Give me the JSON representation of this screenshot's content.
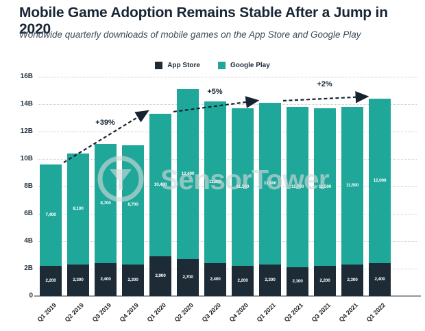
{
  "header": {
    "title": "Mobile Game Adoption Remains Stable After a Jump in 2020",
    "subtitle": "Worldwide quarterly downloads of mobile games on the App Store and Google Play"
  },
  "legend": [
    {
      "label": "App Store",
      "color": "#1d2b36"
    },
    {
      "label": "Google Play",
      "color": "#1fa79a"
    }
  ],
  "watermark": {
    "text": "SensorTower",
    "color": "#d5d9da"
  },
  "colors": {
    "app_store": "#1d2b36",
    "google_play": "#1fa79a",
    "annotation": "#152230",
    "gridline": "#c7cccd"
  },
  "chart_data": {
    "type": "bar",
    "stacked": true,
    "title": "Mobile Game Adoption Remains Stable After a Jump in 2020",
    "subtitle": "Worldwide quarterly downloads of mobile games on the App Store and Google Play",
    "unit": "millions of downloads per quarter",
    "categories": [
      "Q1 2019",
      "Q2 2019",
      "Q3 2019",
      "Q4 2019",
      "Q1 2020",
      "Q2 2020",
      "Q3 2020",
      "Q4 2020",
      "Q1 2021",
      "Q2 2021",
      "Q3 2021",
      "Q4 2021",
      "Q1 2022"
    ],
    "series": [
      {
        "name": "App Store",
        "color": "#1d2b36",
        "values": [
          2200,
          2300,
          2400,
          2300,
          2900,
          2700,
          2400,
          2200,
          2300,
          2100,
          2200,
          2300,
          2400
        ]
      },
      {
        "name": "Google Play",
        "color": "#1fa79a",
        "values": [
          7400,
          8100,
          8700,
          8700,
          10400,
          12400,
          11800,
          11500,
          11800,
          11700,
          11500,
          11500,
          12000
        ]
      }
    ],
    "totals_billions": [
      9.6,
      10.4,
      11.1,
      11.0,
      13.3,
      15.1,
      14.2,
      13.7,
      14.1,
      13.8,
      13.7,
      13.8,
      14.4
    ],
    "xlabel": "",
    "ylabel": "",
    "ylim": [
      0,
      16000
    ],
    "ytick_values": [
      0,
      2000,
      4000,
      6000,
      8000,
      10000,
      12000,
      14000,
      16000
    ],
    "ytick_labels": [
      "0",
      "2B",
      "4B",
      "6B",
      "8B",
      "10B",
      "12B",
      "14B",
      "16B"
    ],
    "grid": "horizontal-dotted",
    "legend_position": "top-center",
    "annotations": [
      {
        "label": "+39%",
        "from": "Q1 2019",
        "to": "Q1 2020"
      },
      {
        "label": "+5%",
        "from": "Q1 2020",
        "to": "Q1 2021"
      },
      {
        "label": "+2%",
        "from": "Q1 2021",
        "to": "Q1 2022"
      }
    ]
  }
}
